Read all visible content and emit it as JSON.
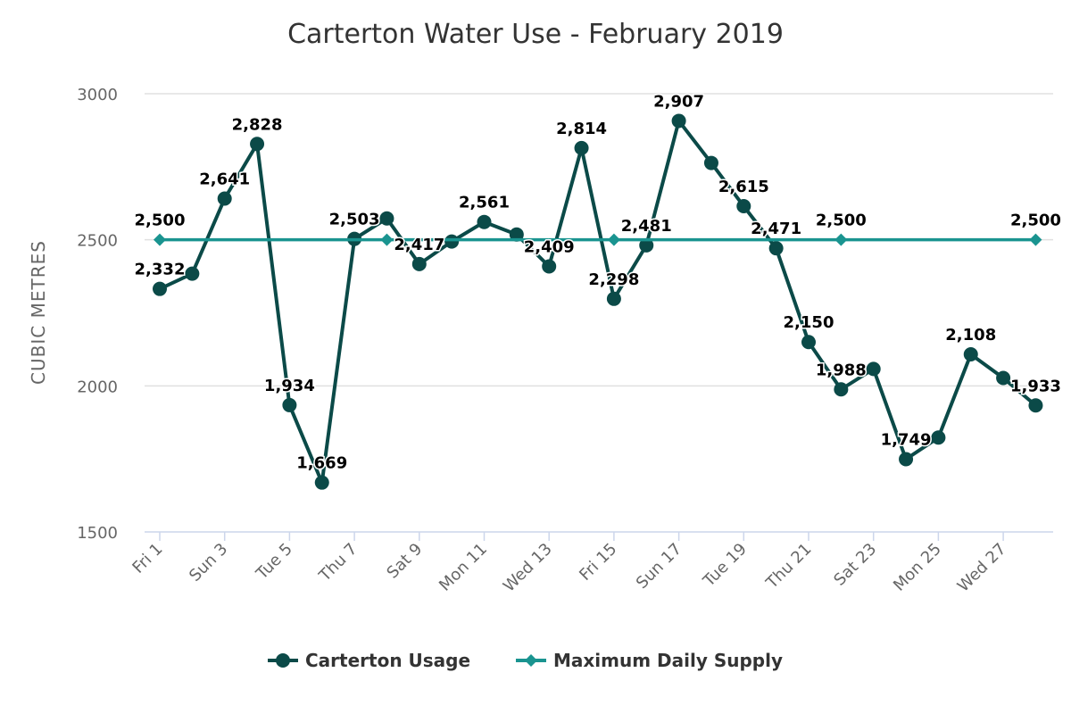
{
  "chart_data": {
    "type": "line",
    "title": "Carterton Water Use - February 2019",
    "ylabel": "CUBIC METRES",
    "xlabel": "",
    "ylim": [
      1500,
      3000
    ],
    "yticks": [
      1500,
      2000,
      2500,
      3000
    ],
    "grid": true,
    "legend_position": "bottom",
    "x": [
      1,
      2,
      3,
      4,
      5,
      6,
      7,
      8,
      9,
      10,
      11,
      12,
      13,
      14,
      15,
      16,
      17,
      18,
      19,
      20,
      21,
      22,
      23,
      24,
      25,
      26,
      27,
      28
    ],
    "xtick_labels": [
      "Fri 1",
      "Sun 3",
      "Tue 5",
      "Thu 7",
      "Sat 9",
      "Mon 11",
      "Wed 13",
      "Fri 15",
      "Sun 17",
      "Tue 19",
      "Thu 21",
      "Sat 23",
      "Mon 25",
      "Wed 27"
    ],
    "series": [
      {
        "name": "Carterton Usage",
        "color": "#0b4a48",
        "marker": "circle",
        "values": [
          2332,
          2384,
          2641,
          2828,
          1934,
          1669,
          2503,
          2573,
          2417,
          2494,
          2561,
          2518,
          2409,
          2814,
          2298,
          2481,
          2907,
          2763,
          2615,
          2471,
          2150,
          1988,
          2058,
          1749,
          1823,
          2108,
          2027,
          1933
        ],
        "labeled_days": [
          1,
          3,
          4,
          5,
          6,
          7,
          9,
          11,
          13,
          14,
          15,
          16,
          17,
          19,
          20,
          21,
          22,
          24,
          26,
          28
        ]
      },
      {
        "name": "Maximum Daily Supply",
        "color": "#1a9490",
        "marker": "diamond",
        "values": [
          2500,
          2500,
          2500,
          2500,
          2500,
          2500,
          2500,
          2500,
          2500,
          2500,
          2500,
          2500,
          2500,
          2500,
          2500,
          2500,
          2500,
          2500,
          2500,
          2500,
          2500,
          2500,
          2500,
          2500,
          2500,
          2500,
          2500,
          2500
        ],
        "marker_days": [
          1,
          8,
          15,
          22,
          28
        ],
        "labeled_days": [
          1,
          22,
          28
        ]
      }
    ]
  }
}
